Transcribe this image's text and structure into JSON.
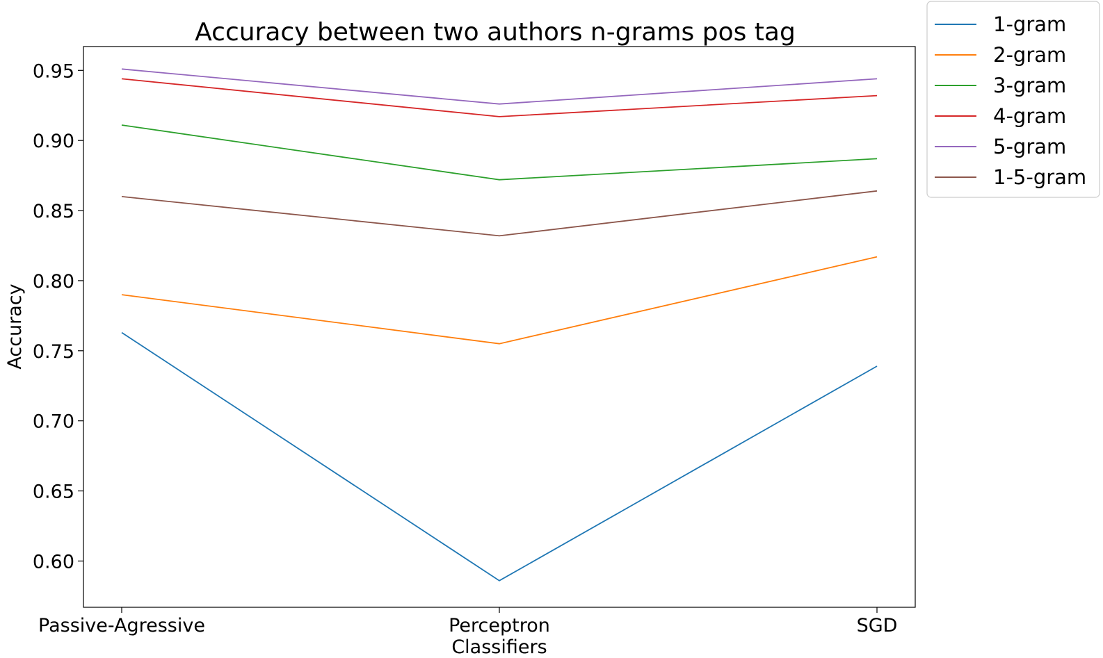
{
  "chart_data": {
    "type": "line",
    "title": "Accuracy between two authors n-grams pos tag",
    "xlabel": "Classifiers",
    "ylabel": "Accuracy",
    "categories": [
      "Passive-Agressive",
      "Perceptron",
      "SGD"
    ],
    "ylim": [
      0.567,
      0.967
    ],
    "yticks": [
      "0.60",
      "0.65",
      "0.70",
      "0.75",
      "0.80",
      "0.85",
      "0.90",
      "0.95"
    ],
    "grid": false,
    "legend_position": "outside-top-right",
    "series": [
      {
        "name": "1-gram",
        "color": "#1f77b4",
        "values": [
          0.763,
          0.586,
          0.739
        ]
      },
      {
        "name": "2-gram",
        "color": "#ff7f0e",
        "values": [
          0.79,
          0.755,
          0.817
        ]
      },
      {
        "name": "3-gram",
        "color": "#2ca02c",
        "values": [
          0.911,
          0.872,
          0.887
        ]
      },
      {
        "name": "4-gram",
        "color": "#d62728",
        "values": [
          0.944,
          0.917,
          0.932
        ]
      },
      {
        "name": "5-gram",
        "color": "#9467bd",
        "values": [
          0.951,
          0.926,
          0.944
        ]
      },
      {
        "name": "1-5-gram",
        "color": "#8c564b",
        "values": [
          0.86,
          0.832,
          0.864
        ]
      }
    ]
  }
}
